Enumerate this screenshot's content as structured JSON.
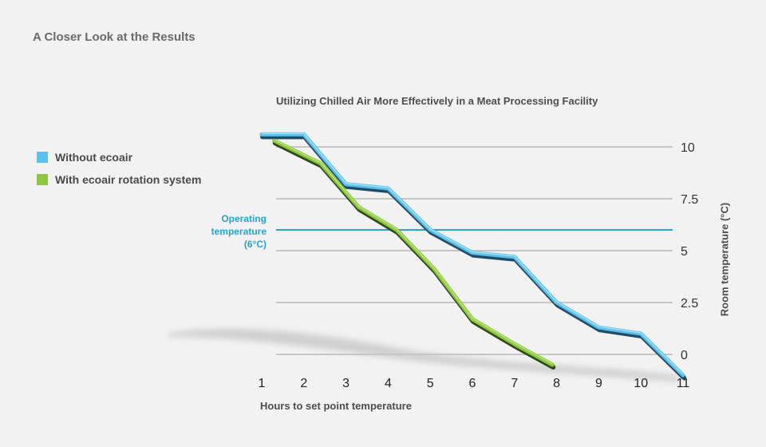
{
  "page": {
    "heading": "A Closer Look at the Results"
  },
  "chart_data": {
    "type": "line",
    "title": "Utilizing Chilled Air More Effectively in a Meat Processing Facility",
    "xlabel": "Hours to set point temperature",
    "ylabel": "Room temperature (°C)",
    "x_ticks": [
      "1",
      "2",
      "3",
      "4",
      "5",
      "6",
      "7",
      "8",
      "9",
      "10",
      "11"
    ],
    "y_ticks": [
      "0",
      "2.5",
      "5",
      "7.5",
      "10"
    ],
    "xlim": [
      1,
      11
    ],
    "ylim": [
      0,
      10
    ],
    "grid": true,
    "legend_position": "left",
    "reference_line": {
      "value": 6,
      "label_lines": [
        "Operating",
        "temperature",
        "(6°C)"
      ],
      "color": "#2aa3cc"
    },
    "series": [
      {
        "name": "Without ecoair",
        "color": "#5bc0eb",
        "points": [
          [
            1,
            10.6
          ],
          [
            2,
            10.6
          ],
          [
            3,
            8.2
          ],
          [
            4,
            8.0
          ],
          [
            5,
            6.0
          ],
          [
            6,
            4.9
          ],
          [
            7,
            4.7
          ],
          [
            8,
            2.5
          ],
          [
            9,
            1.3
          ],
          [
            10,
            1.0
          ],
          [
            11,
            -1.0
          ]
        ]
      },
      {
        "name": "With ecoair rotation system",
        "color": "#8dc63f",
        "points": [
          [
            1.3,
            10.3
          ],
          [
            2.4,
            9.2
          ],
          [
            3.3,
            7.1
          ],
          [
            4.2,
            6.0
          ],
          [
            5.1,
            4.1
          ],
          [
            6,
            1.7
          ],
          [
            7,
            0.5
          ],
          [
            7.9,
            -0.5
          ]
        ]
      }
    ]
  }
}
